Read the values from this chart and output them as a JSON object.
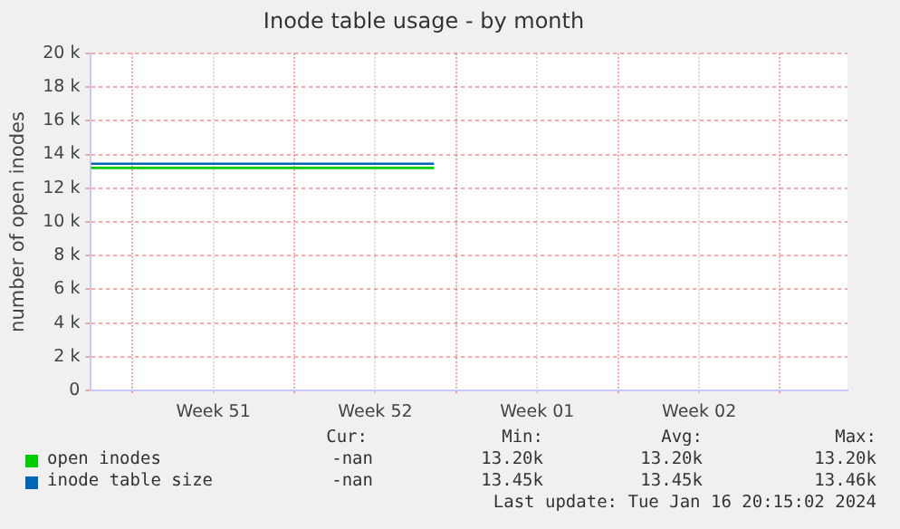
{
  "chart_data": {
    "type": "line",
    "title": "Inode table usage - by month",
    "ylabel": "number of open inodes",
    "xlim": [
      "2023-12-16T05:00",
      "2024-01-17T22:00"
    ],
    "xticks": [
      {
        "value": "2023-12-18",
        "label": null
      },
      {
        "value": "2023-12-21T12:00",
        "label": "Week 51"
      },
      {
        "value": "2023-12-25",
        "label": null
      },
      {
        "value": "2023-12-28T12:00",
        "label": "Week 52"
      },
      {
        "value": "2024-01-01",
        "label": null
      },
      {
        "value": "2024-01-04T12:00",
        "label": "Week 01"
      },
      {
        "value": "2024-01-08",
        "label": null
      },
      {
        "value": "2024-01-11T12:00",
        "label": "Week 02"
      },
      {
        "value": "2024-01-15",
        "label": null
      }
    ],
    "ylim": [
      0,
      20000
    ],
    "yticks": [
      {
        "value": 0,
        "label": "0"
      },
      {
        "value": 2000,
        "label": "2 k"
      },
      {
        "value": 4000,
        "label": "4 k"
      },
      {
        "value": 6000,
        "label": "6 k"
      },
      {
        "value": 8000,
        "label": "8 k"
      },
      {
        "value": 10000,
        "label": "10 k"
      },
      {
        "value": 12000,
        "label": "12 k"
      },
      {
        "value": 14000,
        "label": "14 k"
      },
      {
        "value": 16000,
        "label": "16 k"
      },
      {
        "value": 18000,
        "label": "18 k"
      },
      {
        "value": 20000,
        "label": "20 k"
      }
    ],
    "grid": true,
    "legend": "bottom",
    "marker": "none",
    "line_style": "solid",
    "series": [
      {
        "name": "open inodes",
        "color": "#00cc00",
        "x": [
          "2023-12-16T05:00",
          "2023-12-31T01:00"
        ],
        "values": [
          13200,
          13200
        ]
      },
      {
        "name": "inode table size",
        "color": "#0066b3",
        "x": [
          "2023-12-16T05:00",
          "2023-12-31T01:00"
        ],
        "values": [
          13450,
          13450
        ]
      }
    ],
    "annotations": [
      "Cur:",
      "Min:",
      "Avg:",
      "Max:",
      "-nan",
      "13.20k",
      "13.20k",
      "13.20k",
      "-nan",
      "13.45k",
      "13.45k",
      "13.46k",
      "Last update: Tue Jan 16 20:15:02 2024"
    ]
  }
}
